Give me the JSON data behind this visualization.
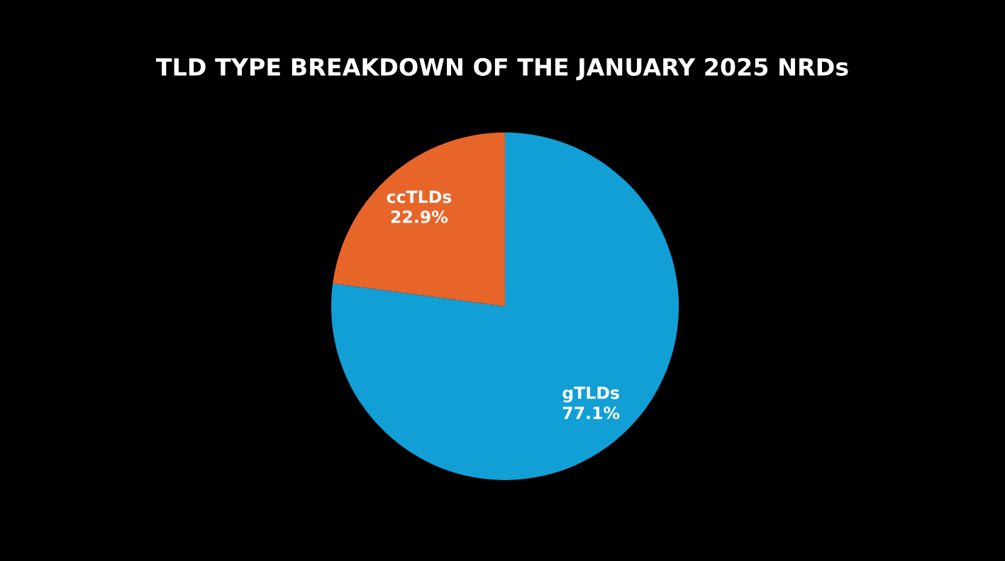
{
  "chart_data": {
    "type": "pie",
    "title": "TLD TYPE BREAKDOWN OF THE JANUARY 2025 NRDs",
    "categories": [
      "gTLDs",
      "ccTLDs"
    ],
    "values": [
      77.1,
      22.9
    ],
    "colors": [
      "#129fd6",
      "#e8652a"
    ],
    "value_labels": [
      "77.1%",
      "22.9%"
    ],
    "legend": false
  }
}
